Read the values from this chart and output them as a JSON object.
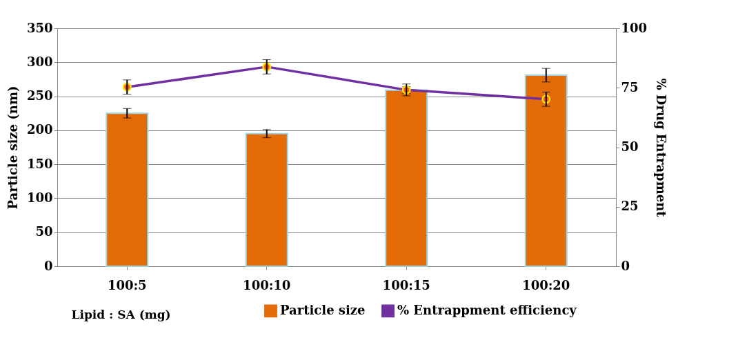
{
  "chart_data": {
    "type": "bar",
    "xlabel": "Lipid : SA (mg)",
    "ylabel": "Particle size (nm)",
    "y2label": "% Drug Entrapment",
    "categories": [
      "100:5",
      "100:10",
      "100:15",
      "100:20"
    ],
    "series": [
      {
        "name": "Particle size",
        "color": "#e36c09",
        "values": [
          225,
          195,
          259,
          281
        ],
        "errors": [
          7,
          6,
          5,
          10
        ]
      },
      {
        "name": "% Entrappment efficiency",
        "type": "line",
        "axis": "y2",
        "color": "#7030a0",
        "values": [
          75.3,
          83.8,
          74.1,
          70.2
        ],
        "errors": [
          3,
          3,
          2.5,
          3
        ]
      }
    ],
    "ylim": [
      0,
      350
    ],
    "yticks": [
      0,
      50,
      100,
      150,
      200,
      250,
      300,
      350
    ],
    "y2lim": [
      0,
      100
    ],
    "y2ticks": [
      0,
      25,
      50,
      75,
      100
    ],
    "grid": "y",
    "legend": "bottom",
    "marker": "circle"
  }
}
